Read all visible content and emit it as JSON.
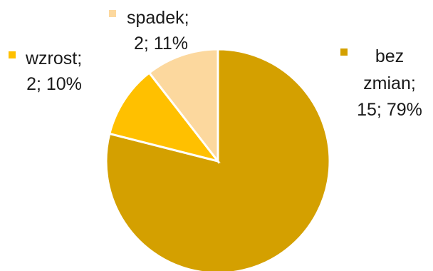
{
  "chart_data": {
    "type": "pie",
    "title": "",
    "slices": [
      {
        "label": "bez zmian",
        "count": 15,
        "percent": 79,
        "color": "#D4A000",
        "label_lines": [
          "bez",
          "zmian;",
          "15; 79%"
        ]
      },
      {
        "label": "wzrost",
        "count": 2,
        "percent": 10,
        "color": "#FFC000",
        "label_lines": [
          "wzrost;",
          "2; 10%"
        ]
      },
      {
        "label": "spadek",
        "count": 2,
        "percent": 11,
        "color": "#FCD89E",
        "label_lines": [
          "spadek;",
          "2; 11%"
        ]
      }
    ]
  }
}
